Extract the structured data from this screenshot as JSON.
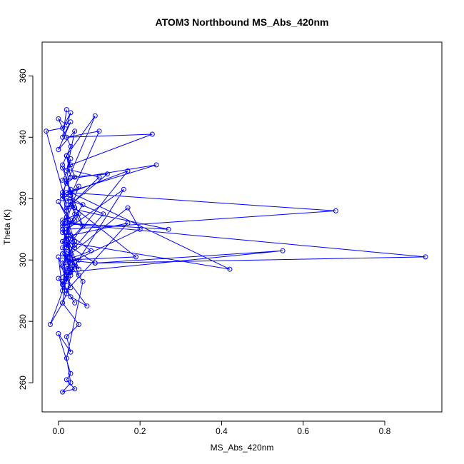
{
  "chart_data": {
    "type": "line",
    "title": "ATOM3 Northbound MS_Abs_420nm",
    "xlabel": "MS_Abs_420nm",
    "ylabel": "Theta (K)",
    "xlim": [
      -0.04,
      0.94
    ],
    "ylim": [
      250.5,
      371
    ],
    "xticks": [
      0.0,
      0.2,
      0.4,
      0.6,
      0.8
    ],
    "xtick_labels": [
      "0.0",
      "0.2",
      "0.4",
      "0.6",
      "0.8"
    ],
    "yticks": [
      260,
      280,
      300,
      320,
      340,
      360
    ],
    "ytick_labels": [
      "260",
      "280",
      "300",
      "320",
      "340",
      "360"
    ],
    "grid": false,
    "legend": "none",
    "colors": {
      "series": "#0000ff",
      "axes": "#000000",
      "background": "#ffffff"
    },
    "markers": "open-circle",
    "series": [
      {
        "x": [
          0.02,
          0.01,
          0.03,
          0.0,
          0.04,
          0.02,
          0.03,
          0.01,
          0.05,
          0.02,
          0.06,
          0.01,
          0.02,
          0.04,
          0.03,
          0.02,
          0.01,
          0.05,
          0.02,
          0.03,
          0.0,
          0.03,
          0.02,
          0.04,
          0.01,
          0.03,
          0.02,
          0.06,
          0.02,
          0.01,
          0.04,
          0.03,
          0.1,
          0.02,
          0.23,
          0.03,
          0.01,
          0.24,
          0.02,
          0.68,
          0.02,
          0.06,
          0.01,
          0.09,
          0.02,
          0.03,
          0.12,
          0.02,
          0.27,
          0.02,
          0.04,
          0.01,
          0.2,
          0.17,
          0.03,
          0.02,
          0.55,
          0.09,
          0.01,
          0.42,
          0.03,
          0.17,
          0.02,
          0.01,
          0.9,
          0.09,
          0.02,
          0.19,
          0.03,
          0.1,
          0.01,
          0.06,
          0.02,
          0.11,
          0.04,
          0.01,
          0.16,
          0.03,
          0.02,
          0.08,
          0.02,
          0.05,
          0.01,
          0.03,
          0.17,
          0.02,
          0.04,
          0.01,
          0.02,
          0.07,
          0.03,
          0.01,
          0.05,
          0.02,
          0.03,
          -0.02,
          0.01,
          0.02,
          0.03,
          0.01,
          0.04,
          0.02,
          0.0,
          0.03,
          0.02,
          0.05,
          0.01,
          0.02,
          0.03,
          0.02,
          0.0,
          0.01,
          0.02,
          0.05,
          0.01,
          0.02,
          0.03,
          0.02,
          0.01,
          0.02,
          -0.03,
          0.01,
          0.03,
          0.02,
          0.0,
          0.03,
          0.01,
          0.02,
          0.04,
          0.02,
          0.03,
          0.01,
          0.02,
          0.04,
          0.03,
          0.02,
          0.01,
          0.04,
          0.02,
          0.03,
          0.02,
          0.01,
          0.03,
          0.02,
          0.0,
          0.01,
          0.02,
          0.03,
          0.02,
          0.01
        ],
        "y": [
          349,
          340,
          345,
          336,
          342,
          329,
          333,
          320,
          324,
          313,
          311,
          304,
          301,
          298,
          295,
          289,
          286,
          279,
          275,
          270,
          276,
          263,
          261,
          258,
          257,
          260,
          268,
          293,
          300,
          306,
          315,
          321,
          342,
          340,
          341,
          331,
          326,
          331,
          322,
          316,
          310,
          318,
          322,
          347,
          334,
          327,
          328,
          317,
          310,
          312,
          305,
          298,
          310,
          317,
          302,
          296,
          303,
          299,
          306,
          297,
          322,
          329,
          304,
          312,
          301,
          299,
          300,
          301,
          318,
          327,
          330,
          311,
          320,
          315,
          304,
          309,
          323,
          296,
          300,
          303,
          309,
          315,
          313,
          308,
          312,
          290,
          286,
          292,
          294,
          285,
          288,
          293,
          300,
          302,
          297,
          279,
          286,
          295,
          291,
          298,
          306,
          314,
          319,
          313,
          308,
          297,
          302,
          300,
          296,
          293,
          301,
          290,
          305,
          295,
          310,
          307,
          299,
          316,
          321,
          318,
          342,
          343,
          348,
          344,
          346,
          337,
          331,
          334,
          327,
          325,
          323,
          321,
          326,
          317,
          319,
          314,
          311,
          313,
          309,
          307,
          304,
          302,
          299,
          296,
          294,
          292,
          298,
          297,
          295,
          300
        ]
      }
    ]
  }
}
